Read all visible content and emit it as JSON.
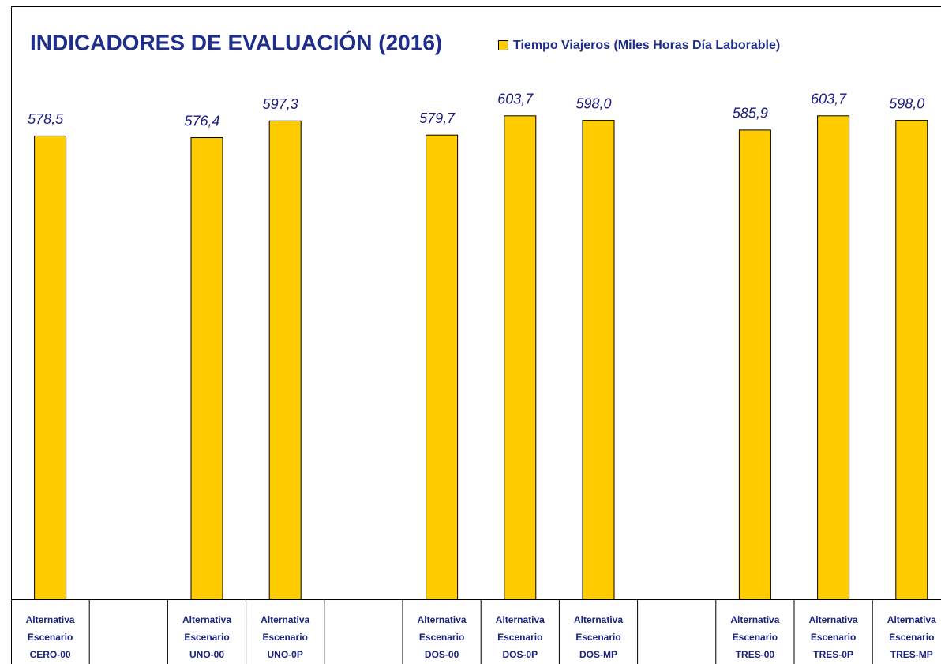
{
  "chart_data": {
    "type": "bar",
    "title": "INDICADORES DE EVALUACIÓN (2016)",
    "categories": [
      [
        "Alternativa",
        "Escenario",
        "CERO-00"
      ],
      null,
      [
        "Alternativa",
        "Escenario",
        "UNO-00"
      ],
      [
        "Alternativa",
        "Escenario",
        "UNO-0P"
      ],
      null,
      [
        "Alternativa",
        "Escenario",
        "DOS-00"
      ],
      [
        "Alternativa",
        "Escenario",
        "DOS-0P"
      ],
      [
        "Alternativa",
        "Escenario",
        "DOS-MP"
      ],
      null,
      [
        "Alternativa",
        "Escenario",
        "TRES-00"
      ],
      [
        "Alternativa",
        "Escenario",
        "TRES-0P"
      ],
      [
        "Alternativa",
        "Escenario",
        "TRES-MP"
      ]
    ],
    "series": [
      {
        "name": "Tiempo Viajeros (Miles Horas Día Laborable)",
        "color": "#ffcc00",
        "values": [
          578.5,
          null,
          576.4,
          597.3,
          null,
          579.7,
          603.7,
          598.0,
          null,
          585.9,
          603.7,
          598.0
        ],
        "value_labels": [
          "578,5",
          null,
          "576,4",
          "597,3",
          null,
          "579,7",
          "603,7",
          "598,0",
          null,
          "585,9",
          "603,7",
          "598,0"
        ]
      }
    ],
    "ylim": [
      0,
      700
    ],
    "legend": "top"
  }
}
